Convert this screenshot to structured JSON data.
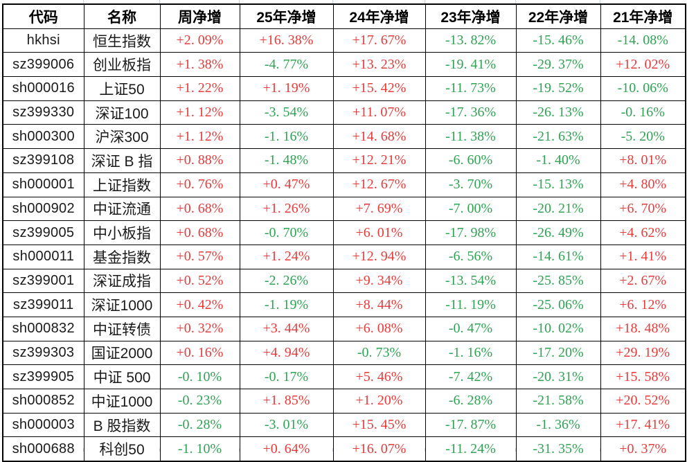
{
  "colors": {
    "positive": "#e93a3a",
    "negative": "#2fa353",
    "grid": "#000000",
    "outer_gridline": "#ccd4dc"
  },
  "table": {
    "columns": [
      "代码",
      "名称",
      "周净增",
      "25年净增",
      "24年净增",
      "23年净增",
      "22年净增",
      "21年净增"
    ],
    "rows": [
      {
        "code": "hkhsi",
        "name": "恒生指数",
        "values": [
          "+2. 09%",
          "+16. 38%",
          "+17. 67%",
          "-13. 82%",
          "-15. 46%",
          "-14. 08%"
        ]
      },
      {
        "code": "sz399006",
        "name": "创业板指",
        "values": [
          "+1. 38%",
          "-4. 77%",
          "+13. 23%",
          "-19. 41%",
          "-29. 37%",
          "+12. 02%"
        ]
      },
      {
        "code": "sh000016",
        "name": "上证50",
        "values": [
          "+1. 22%",
          "+1. 19%",
          "+15. 42%",
          "-11. 73%",
          "-19. 52%",
          "-10. 06%"
        ]
      },
      {
        "code": "sz399330",
        "name": "深证100",
        "values": [
          "+1. 12%",
          "-3. 54%",
          "+11. 07%",
          "-17. 36%",
          "-26. 13%",
          "-0. 16%"
        ]
      },
      {
        "code": "sh000300",
        "name": "沪深300",
        "values": [
          "+1. 12%",
          "-1. 16%",
          "+14. 68%",
          "-11. 38%",
          "-21. 63%",
          "-5. 20%"
        ]
      },
      {
        "code": "sz399108",
        "name": "深证 B 指",
        "values": [
          "+0. 88%",
          "-1. 48%",
          "+12. 21%",
          "-6. 60%",
          "-1. 40%",
          "+8. 01%"
        ]
      },
      {
        "code": "sh000001",
        "name": "上证指数",
        "values": [
          "+0. 76%",
          "+0. 47%",
          "+12. 67%",
          "-3. 70%",
          "-15. 13%",
          "+4. 80%"
        ]
      },
      {
        "code": "sh000902",
        "name": "中证流通",
        "values": [
          "+0. 68%",
          "+1. 26%",
          "+7. 69%",
          "-7. 00%",
          "-20. 21%",
          "+6. 70%"
        ]
      },
      {
        "code": "sz399005",
        "name": "中小板指",
        "values": [
          "+0. 68%",
          "-0. 70%",
          "+6. 01%",
          "-17. 98%",
          "-26. 49%",
          "+4. 62%"
        ]
      },
      {
        "code": "sh000011",
        "name": "基金指数",
        "values": [
          "+0. 57%",
          "+1. 24%",
          "+12. 94%",
          "-6. 56%",
          "-14. 61%",
          "+1. 41%"
        ]
      },
      {
        "code": "sz399001",
        "name": "深证成指",
        "values": [
          "+0. 52%",
          "-2. 26%",
          "+9. 34%",
          "-13. 54%",
          "-25. 85%",
          "+2. 67%"
        ]
      },
      {
        "code": "sz399011",
        "name": "深证1000",
        "values": [
          "+0. 42%",
          "-1. 19%",
          "+8. 44%",
          "-11. 19%",
          "-25. 06%",
          "+6. 12%"
        ]
      },
      {
        "code": "sh000832",
        "name": "中证转债",
        "values": [
          "+0. 32%",
          "+3. 44%",
          "+6. 08%",
          "-0. 47%",
          "-10. 02%",
          "+18. 48%"
        ]
      },
      {
        "code": "sz399303",
        "name": "国证2000",
        "values": [
          "+0. 16%",
          "+4. 94%",
          "-0. 73%",
          "-1. 16%",
          "-17. 20%",
          "+29. 19%"
        ]
      },
      {
        "code": "sz399905",
        "name": "中证 500",
        "values": [
          "-0. 10%",
          "-0. 17%",
          "+5. 46%",
          "-7. 42%",
          "-20. 31%",
          "+15. 58%"
        ]
      },
      {
        "code": "sh000852",
        "name": "中证1000",
        "values": [
          "-0. 23%",
          "+1. 85%",
          "+1. 20%",
          "-6. 28%",
          "-21. 58%",
          "+20. 52%"
        ]
      },
      {
        "code": "sh000003",
        "name": "B 股指数",
        "values": [
          "-0. 28%",
          "-3. 01%",
          "+15. 45%",
          "-17. 87%",
          "-1. 36%",
          "+17. 41%"
        ]
      },
      {
        "code": "sh000688",
        "name": "科创50",
        "values": [
          "-1. 10%",
          "+0. 64%",
          "+16. 07%",
          "-11. 24%",
          "-31. 35%",
          "+0. 37%"
        ]
      }
    ]
  }
}
